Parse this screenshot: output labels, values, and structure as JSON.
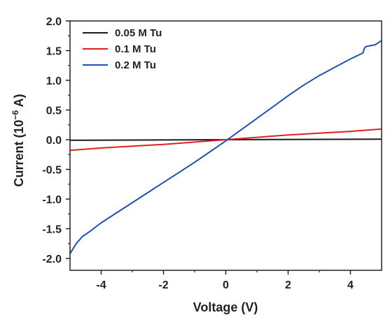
{
  "chart_data": {
    "type": "line",
    "xlabel": "Voltage (V)",
    "ylabel": {
      "prefix": "Current (10",
      "exp": "−6",
      "suffix": " A)"
    },
    "xlim": [
      -5,
      5
    ],
    "ylim": [
      -2.2,
      2.0
    ],
    "x_ticks": [
      -4,
      -2,
      0,
      2,
      4
    ],
    "x_tick_labels": [
      "-4",
      "-2",
      "0",
      "2",
      "4"
    ],
    "y_ticks": [
      -2.0,
      -1.5,
      -1.0,
      -0.5,
      0.0,
      0.5,
      1.0,
      1.5,
      2.0
    ],
    "y_tick_labels": [
      "-2.0",
      "-1.5",
      "-1.0",
      "-0.5",
      "0.0",
      "0.5",
      "1.0",
      "1.5",
      "2.0"
    ],
    "grid": false,
    "legend_position": "top-left",
    "series": [
      {
        "name": "0.05 M Tu",
        "color": "#1a1a1a",
        "x": [
          -5,
          0,
          5
        ],
        "y": [
          -0.01,
          0.0,
          0.01
        ]
      },
      {
        "name": "0.1 M Tu",
        "color": "#e02020",
        "x": [
          -5,
          -4,
          -3,
          -2,
          -1,
          0,
          1,
          2,
          3,
          4,
          5
        ],
        "y": [
          -0.18,
          -0.14,
          -0.11,
          -0.08,
          -0.04,
          0.0,
          0.04,
          0.08,
          0.11,
          0.14,
          0.18
        ]
      },
      {
        "name": "0.2 M Tu",
        "color": "#2050b0",
        "x": [
          -5,
          -4.8,
          -4.6,
          -4.4,
          -4,
          -3.5,
          -3,
          -2.5,
          -2,
          -1.5,
          -1,
          -0.5,
          0,
          0.5,
          1,
          1.5,
          2,
          2.5,
          3,
          3.5,
          4,
          4.4,
          4.45,
          4.5,
          4.8,
          5
        ],
        "y": [
          -1.92,
          -1.75,
          -1.63,
          -1.56,
          -1.4,
          -1.23,
          -1.06,
          -0.89,
          -0.72,
          -0.55,
          -0.38,
          -0.2,
          -0.02,
          0.17,
          0.36,
          0.55,
          0.74,
          0.92,
          1.08,
          1.22,
          1.36,
          1.46,
          1.54,
          1.57,
          1.6,
          1.67
        ]
      }
    ]
  }
}
